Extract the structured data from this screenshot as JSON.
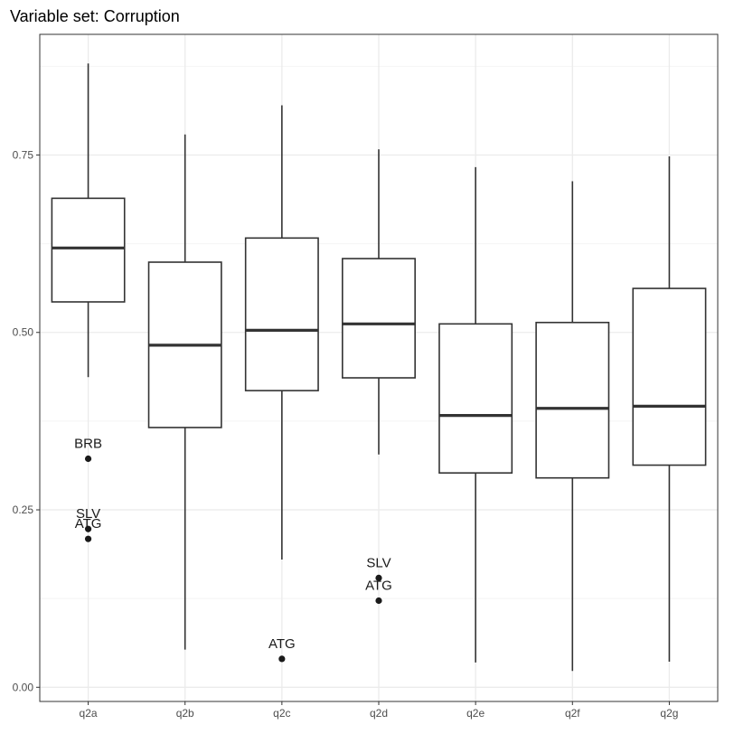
{
  "chart_data": {
    "type": "boxplot",
    "title": "Variable set: Corruption",
    "xlabel": "",
    "ylabel": "",
    "ylim": [
      -0.02,
      0.92
    ],
    "y_ticks": [
      0.0,
      0.25,
      0.5,
      0.75
    ],
    "y_tick_labels": [
      "0.00",
      "0.25",
      "0.50",
      "0.75"
    ],
    "grid": true,
    "colors": {
      "box_line": "#333333",
      "grid_major": "#ebebeb",
      "grid_minor": "#f4f4f4",
      "border": "#333333",
      "point": "#1a1a1a"
    },
    "categories": [
      "q2a",
      "q2b",
      "q2c",
      "q2d",
      "q2e",
      "q2f",
      "q2g"
    ],
    "boxes": [
      {
        "category": "q2a",
        "whisker_low": 0.437,
        "q1": 0.543,
        "median": 0.619,
        "q3": 0.689,
        "whisker_high": 0.879
      },
      {
        "category": "q2b",
        "whisker_low": 0.053,
        "q1": 0.366,
        "median": 0.482,
        "q3": 0.599,
        "whisker_high": 0.779
      },
      {
        "category": "q2c",
        "whisker_low": 0.18,
        "q1": 0.418,
        "median": 0.503,
        "q3": 0.633,
        "whisker_high": 0.82
      },
      {
        "category": "q2d",
        "whisker_low": 0.328,
        "q1": 0.436,
        "median": 0.512,
        "q3": 0.604,
        "whisker_high": 0.758
      },
      {
        "category": "q2e",
        "whisker_low": 0.035,
        "q1": 0.302,
        "median": 0.383,
        "q3": 0.512,
        "whisker_high": 0.733
      },
      {
        "category": "q2f",
        "whisker_low": 0.023,
        "q1": 0.295,
        "median": 0.393,
        "q3": 0.514,
        "whisker_high": 0.713
      },
      {
        "category": "q2g",
        "whisker_low": 0.036,
        "q1": 0.313,
        "median": 0.396,
        "q3": 0.562,
        "whisker_high": 0.748
      }
    ],
    "outliers": [
      {
        "category": "q2a",
        "y": 0.322,
        "label": "BRB"
      },
      {
        "category": "q2a",
        "y": 0.223,
        "label": "SLV"
      },
      {
        "category": "q2a",
        "y": 0.209,
        "label": "ATG"
      },
      {
        "category": "q2c",
        "y": 0.04,
        "label": "ATG"
      },
      {
        "category": "q2d",
        "y": 0.154,
        "label": "SLV"
      },
      {
        "category": "q2d",
        "y": 0.122,
        "label": "ATG"
      }
    ]
  }
}
